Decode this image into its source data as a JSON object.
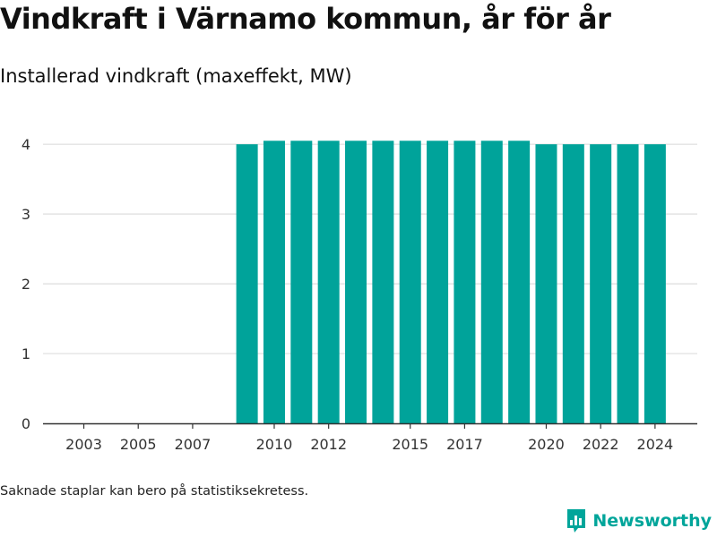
{
  "header": {
    "title": "Vindkraft i Värnamo kommun, år för år",
    "subtitle": "Installerad vindkraft (maxeffekt, MW)"
  },
  "footer": {
    "note": "Saknade staplar kan bero på statistiksekretess.",
    "brand": "Newsworthy",
    "brand_icon": "newsworthy-logo-icon"
  },
  "colors": {
    "bar": "#00a39a",
    "grid": "#dddddd",
    "axis": "#333333",
    "brand": "#00a59a"
  },
  "chart_data": {
    "type": "bar",
    "title": "Vindkraft i Värnamo kommun, år för år",
    "subtitle": "Installerad vindkraft (maxeffekt, MW)",
    "xlabel": "",
    "ylabel": "",
    "x": [
      2002,
      2003,
      2004,
      2005,
      2006,
      2007,
      2008,
      2009,
      2010,
      2011,
      2012,
      2013,
      2014,
      2015,
      2016,
      2017,
      2018,
      2019,
      2020,
      2021,
      2022,
      2023,
      2024
    ],
    "values": [
      0,
      0,
      0,
      0,
      0,
      0,
      0,
      4.0,
      4.05,
      4.05,
      4.05,
      4.05,
      4.05,
      4.05,
      4.05,
      4.05,
      4.05,
      4.05,
      4.0,
      4.0,
      4.0,
      4.0,
      4.0
    ],
    "x_tick_labels": [
      "2003",
      "2005",
      "2007",
      "2010",
      "2012",
      "2015",
      "2017",
      "2020",
      "2022",
      "2024"
    ],
    "y_ticks": [
      0,
      1,
      2,
      3,
      4
    ],
    "ylim": [
      0,
      4.4
    ],
    "grid": true,
    "legend": "none"
  }
}
